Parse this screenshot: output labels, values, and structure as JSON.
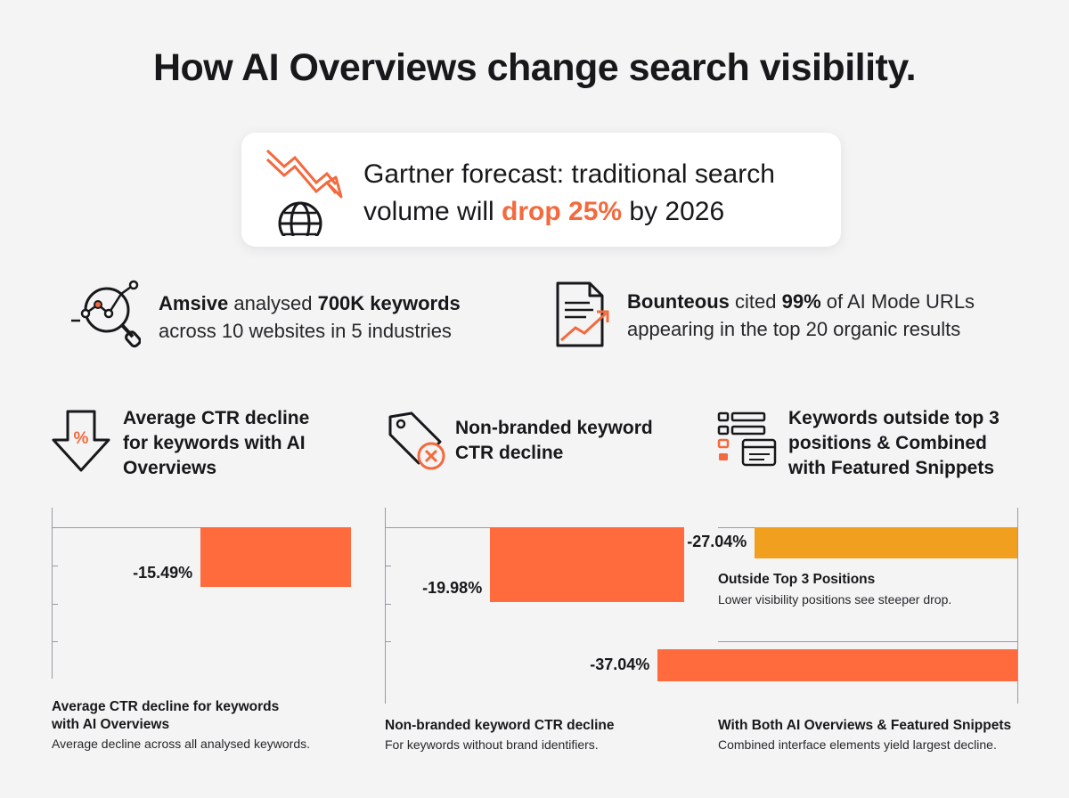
{
  "title": "How AI Overviews change search visibility.",
  "forecast": {
    "line1": "Gartner forecast: traditional search",
    "line2_before": "volume will ",
    "line2_highlight": "drop 25%",
    "line2_after": " by 2026"
  },
  "stats": [
    {
      "icon": "search-analytics-icon",
      "strong1": "Amsive",
      "mid": " analysed ",
      "strong2": "700K keywords",
      "line2": "across 10 websites in 5 industries"
    },
    {
      "icon": "document-growth-icon",
      "strong1": "Bounteous",
      "mid": " cited ",
      "strong2": "99%",
      "tail": " of AI Mode URLs",
      "line2": "appearing in the top 20 organic results"
    }
  ],
  "columns": [
    {
      "icon": "percent-down-arrow-icon",
      "title_lines": [
        "Average CTR decline",
        "for keywords with AI",
        "Overviews"
      ]
    },
    {
      "icon": "tag-x-icon",
      "title_lines": [
        "Non-branded keyword",
        "CTR decline"
      ]
    },
    {
      "icon": "list-snippet-icon",
      "title_lines": [
        "Keywords outside top 3",
        "positions & Combined",
        "with Featured Snippets"
      ]
    }
  ],
  "colors": {
    "accent": "#f26a3d",
    "bar_primary": "#ff6b3d",
    "bar_secondary": "#f0a01e"
  },
  "chart_data": [
    {
      "type": "bar",
      "orientation": "horizontal",
      "series": [
        {
          "label": "-15.49%",
          "value": -15.49
        }
      ],
      "caption_title_lines": [
        "Average CTR decline for keywords",
        "with AI Overviews"
      ],
      "caption_desc": "Average decline across all analysed keywords."
    },
    {
      "type": "bar",
      "orientation": "horizontal",
      "series": [
        {
          "label": "-19.98%",
          "value": -19.98
        }
      ],
      "caption_title_lines": [
        "Non-branded keyword CTR decline"
      ],
      "caption_desc": "For keywords without brand identifiers."
    },
    {
      "type": "bar",
      "orientation": "horizontal",
      "series": [
        {
          "label": "-27.04%",
          "value": -27.04,
          "color": "#f0a01e",
          "caption_title": "Outside Top 3 Positions",
          "caption_desc": "Lower visibility positions see steeper drop."
        },
        {
          "label": "-37.04%",
          "value": -37.04,
          "color": "#ff6b3d",
          "caption_title": "With Both AI Overviews & Featured Snippets",
          "caption_desc": "Combined interface elements yield largest decline."
        }
      ]
    }
  ]
}
